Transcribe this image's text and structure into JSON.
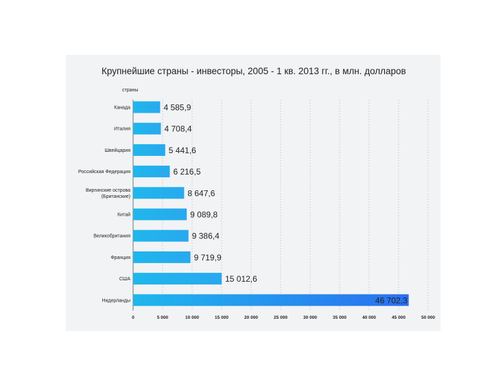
{
  "chart_data": {
    "type": "bar",
    "orientation": "horizontal",
    "title": "Крупнейшие страны - инвесторы, 2005 - 1 кв. 2013 гг., в млн. долларов",
    "ylabel": "страны",
    "xlabel": "",
    "xlim": [
      0,
      50000
    ],
    "grid": true,
    "categories": [
      "Канада",
      "Италия",
      "Швейцария",
      "Российская Федерация",
      [
        "Виргинские острова",
        "(Британские)"
      ],
      "Китай",
      "Великобритания",
      "Франция",
      "США",
      "Нидерланды"
    ],
    "values": [
      4585.9,
      4708.4,
      5441.6,
      6216.5,
      8647.6,
      9089.8,
      9386.4,
      9719.9,
      15012.6,
      46702.3
    ],
    "value_labels": [
      "4 585,9",
      "4 708,4",
      "5 441,6",
      "6 216,5",
      "8 647,6",
      "9 089,8",
      "9 386,4",
      "9 719,9",
      "15 012,6",
      "46 702,3"
    ],
    "ticks": [
      0,
      5000,
      10000,
      15000,
      20000,
      25000,
      30000,
      35000,
      40000,
      45000,
      50000
    ],
    "tick_labels": [
      "0",
      "5 000",
      "10 000",
      "15 000",
      "20 000",
      "25 000",
      "30 000",
      "35 000",
      "40 000",
      "45 000",
      "50 000"
    ]
  },
  "colors": {
    "bar": "#1fb3ea",
    "bar_highlight": "#2b7ff0",
    "panel": "#f2f3f5"
  }
}
